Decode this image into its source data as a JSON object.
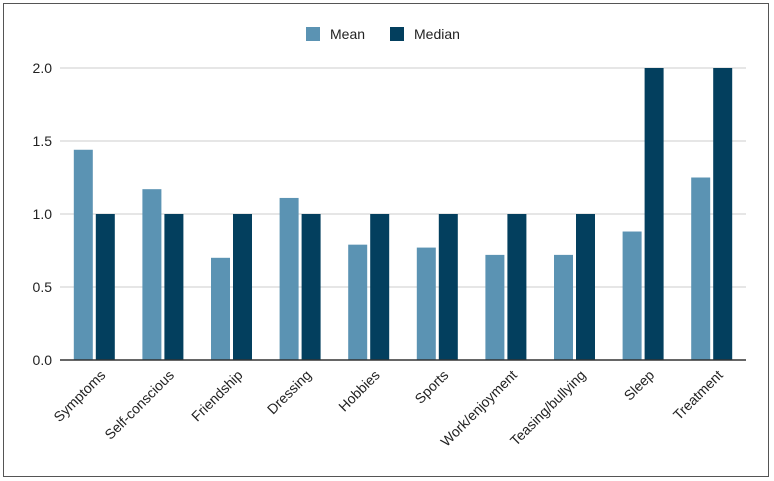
{
  "chart_data": {
    "type": "bar",
    "title": "",
    "xlabel": "",
    "ylabel": "",
    "categories": [
      "Symptoms",
      "Self-conscious",
      "Friendship",
      "Dressing",
      "Hobbies",
      "Sports",
      "Work/enjoyment",
      "Teasing/bullying",
      "Sleep",
      "Treatment"
    ],
    "series": [
      {
        "name": "Mean",
        "color": "#5b93b3",
        "values": [
          1.44,
          1.17,
          0.7,
          1.11,
          0.79,
          0.77,
          0.72,
          0.72,
          0.88,
          1.25
        ]
      },
      {
        "name": "Median",
        "color": "#033f5e",
        "values": [
          1.0,
          1.0,
          1.0,
          1.0,
          1.0,
          1.0,
          1.0,
          1.0,
          2.0,
          2.0
        ]
      }
    ],
    "ylim": [
      0,
      2.0
    ],
    "yticks": [
      "0.0",
      "0.5",
      "1.0",
      "1.5",
      "2.0"
    ],
    "grid": true,
    "legend_position": "top-center"
  }
}
